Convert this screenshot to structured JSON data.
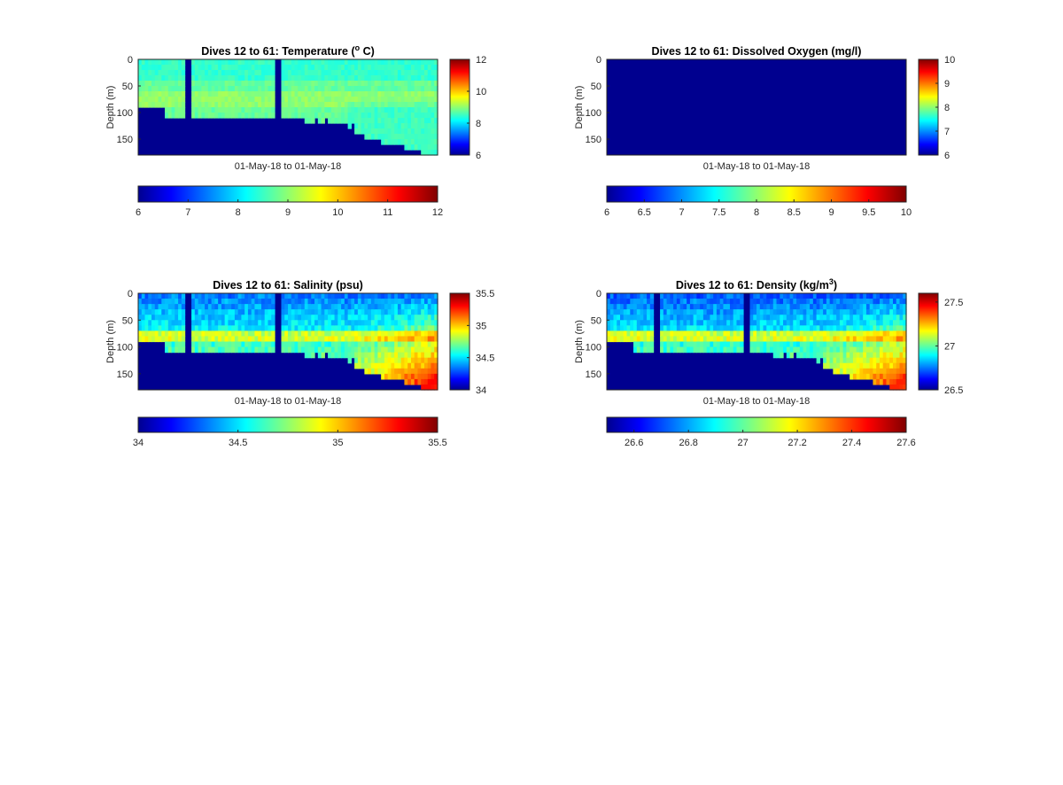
{
  "chart_data": [
    {
      "type": "heatmap",
      "title": "Dives 12 to 61: Temperature (",
      "title_sup": "o",
      "title_tail": " C)",
      "xlabel": "01-May-18 to 01-May-18",
      "ylabel": "Depth (m)",
      "yticks": [
        "0",
        "50",
        "100",
        "150"
      ],
      "ylim": [
        0,
        180
      ],
      "colormap": "jet",
      "bg_color": "#00008f",
      "side_colorbar": {
        "range": [
          6,
          12
        ],
        "ticks": [
          "6",
          "8",
          "10",
          "12"
        ]
      },
      "bottom_colorbar": {
        "range": [
          6,
          12
        ],
        "ticks": [
          "6",
          "7",
          "8",
          "9",
          "10",
          "11",
          "12"
        ]
      },
      "field": "temperature"
    },
    {
      "type": "heatmap",
      "title": "Dives 12 to 61: Dissolved Oxygen (mg/l)",
      "title_sup": "",
      "title_tail": "",
      "xlabel": "01-May-18 to 01-May-18",
      "ylabel": "Depth (m)",
      "yticks": [
        "0",
        "50",
        "100",
        "150"
      ],
      "ylim": [
        0,
        180
      ],
      "colormap": "jet",
      "bg_color": "#00008f",
      "side_colorbar": {
        "range": [
          6,
          10
        ],
        "ticks": [
          "6",
          "7",
          "8",
          "9",
          "10"
        ]
      },
      "bottom_colorbar": {
        "range": [
          6,
          10
        ],
        "ticks": [
          "6",
          "6.5",
          "7",
          "7.5",
          "8",
          "8.5",
          "9",
          "9.5",
          "10"
        ]
      },
      "field": "none"
    },
    {
      "type": "heatmap",
      "title": "Dives 12 to 61: Salinity (psu)",
      "title_sup": "",
      "title_tail": "",
      "xlabel": "01-May-18 to 01-May-18",
      "ylabel": "Depth (m)",
      "yticks": [
        "0",
        "50",
        "100",
        "150"
      ],
      "ylim": [
        0,
        180
      ],
      "colormap": "jet",
      "bg_color": "#00008f",
      "side_colorbar": {
        "range": [
          34,
          35.5
        ],
        "ticks": [
          "34",
          "34.5",
          "35",
          "35.5"
        ]
      },
      "bottom_colorbar": {
        "range": [
          34,
          35.5
        ],
        "ticks": [
          "34",
          "34.5",
          "35",
          "35.5"
        ]
      },
      "field": "salinity"
    },
    {
      "type": "heatmap",
      "title": "Dives 12 to 61: Density (kg/m",
      "title_sup": "3",
      "title_tail": ")",
      "xlabel": "01-May-18 to 01-May-18",
      "ylabel": "Depth (m)",
      "yticks": [
        "0",
        "50",
        "100",
        "150"
      ],
      "ylim": [
        0,
        180
      ],
      "colormap": "jet",
      "bg_color": "#00008f",
      "side_colorbar": {
        "range": [
          26.5,
          27.6
        ],
        "ticks": [
          "26.5",
          "27",
          "27.5"
        ]
      },
      "bottom_colorbar": {
        "range": [
          26.5,
          27.6
        ],
        "ticks": [
          "26.6",
          "26.8",
          "27",
          "27.2",
          "27.4",
          "27.6"
        ]
      },
      "field": "density"
    }
  ]
}
